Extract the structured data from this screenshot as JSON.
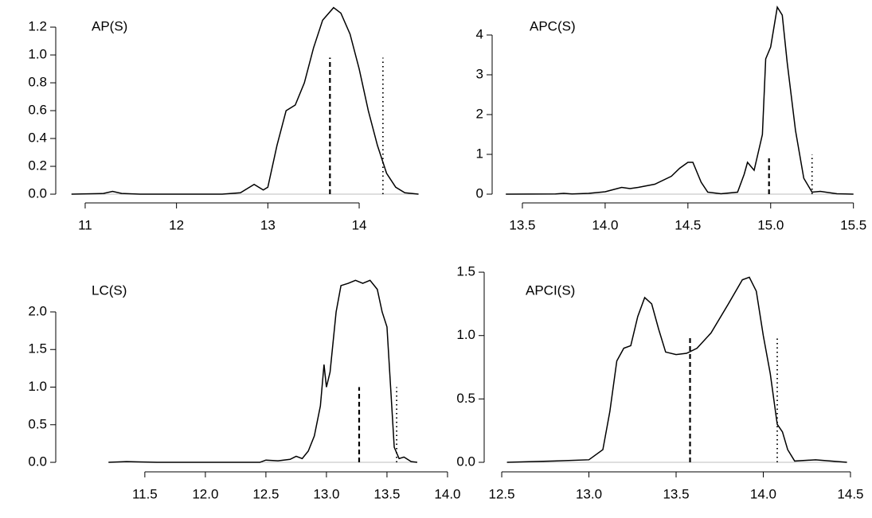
{
  "chart_data": [
    {
      "type": "line",
      "title": "AP(S)",
      "color": "#000000",
      "x": [
        10.85,
        11.2,
        11.3,
        11.4,
        11.6,
        12.5,
        12.7,
        12.85,
        12.95,
        13.0,
        13.1,
        13.2,
        13.3,
        13.4,
        13.5,
        13.6,
        13.72,
        13.8,
        13.9,
        14.0,
        14.1,
        14.2,
        14.3,
        14.4,
        14.5,
        14.65
      ],
      "values": [
        0,
        0.005,
        0.02,
        0.005,
        0,
        0,
        0.01,
        0.07,
        0.03,
        0.05,
        0.35,
        0.6,
        0.64,
        0.8,
        1.05,
        1.25,
        1.34,
        1.3,
        1.15,
        0.9,
        0.6,
        0.35,
        0.15,
        0.05,
        0.01,
        0
      ],
      "xlim": [
        10.765,
        14.645
      ],
      "ylim": [
        -0.057,
        1.349
      ],
      "xticks": [
        11,
        12,
        13,
        14
      ],
      "yticks": [
        {
          "value": 0,
          "label": "0.0"
        },
        0.2,
        0.4,
        0.6,
        0.8,
        {
          "value": 1,
          "label": "1.0"
        },
        1.2
      ],
      "vlines": [
        {
          "x": 13.68,
          "y": 0.98,
          "style": "dashed"
        },
        {
          "x": 14.26,
          "y": 0.98,
          "style": "dotted"
        }
      ]
    },
    {
      "type": "line",
      "title": "APC(S)",
      "color": "#000000",
      "x": [
        13.4,
        13.7,
        13.75,
        13.8,
        13.9,
        14.0,
        14.1,
        14.15,
        14.2,
        14.3,
        14.4,
        14.45,
        14.5,
        14.53,
        14.58,
        14.62,
        14.7,
        14.8,
        14.84,
        14.86,
        14.9,
        14.95,
        14.97,
        15.0,
        15.04,
        15.07,
        15.1,
        15.15,
        15.2,
        15.25,
        15.3,
        15.4,
        15.5
      ],
      "values": [
        0,
        0.005,
        0.02,
        0.005,
        0.02,
        0.06,
        0.17,
        0.14,
        0.17,
        0.25,
        0.45,
        0.65,
        0.8,
        0.8,
        0.3,
        0.05,
        0.01,
        0.05,
        0.5,
        0.8,
        0.6,
        1.5,
        3.4,
        3.7,
        4.7,
        4.5,
        3.3,
        1.6,
        0.4,
        0.05,
        0.07,
        0.01,
        0
      ],
      "xlim": [
        13.375,
        15.54
      ],
      "ylim": [
        -0.2,
        4.72
      ],
      "xticks": [
        13.5,
        {
          "value": 14,
          "label": "14.0"
        },
        14.5,
        {
          "value": 15,
          "label": "15.0"
        },
        15.5
      ],
      "yticks": [
        0,
        1,
        2,
        3,
        4
      ],
      "vlines": [
        {
          "x": 14.99,
          "y": 0.9,
          "style": "dashed"
        },
        {
          "x": 15.25,
          "y": 1.0,
          "style": "dotted"
        }
      ]
    },
    {
      "type": "line",
      "title": "LC(S)",
      "color": "#000000",
      "x": [
        11.2,
        11.35,
        11.45,
        11.6,
        12.45,
        12.5,
        12.6,
        12.7,
        12.75,
        12.8,
        12.85,
        12.9,
        12.95,
        12.98,
        13.0,
        13.03,
        13.08,
        13.12,
        13.18,
        13.24,
        13.3,
        13.36,
        13.42,
        13.46,
        13.5,
        13.53,
        13.56,
        13.6,
        13.64,
        13.7,
        13.75
      ],
      "values": [
        0,
        0.01,
        0.005,
        0,
        0,
        0.03,
        0.02,
        0.04,
        0.08,
        0.05,
        0.15,
        0.35,
        0.75,
        1.3,
        1.0,
        1.2,
        2.0,
        2.35,
        2.38,
        2.42,
        2.38,
        2.42,
        2.3,
        2.0,
        1.8,
        1.0,
        0.2,
        0.05,
        0.07,
        0.01,
        0
      ],
      "xlim": [
        10.83,
        14.02
      ],
      "ylim": [
        -0.116,
        2.55
      ],
      "xticks": [
        11.5,
        {
          "value": 12,
          "label": "12.0"
        },
        12.5,
        {
          "value": 13,
          "label": "13.0"
        },
        13.5,
        {
          "value": 14,
          "label": "14.0"
        }
      ],
      "yticks": [
        {
          "value": 0,
          "label": "0.0"
        },
        0.5,
        {
          "value": 1,
          "label": "1.0"
        },
        1.5,
        {
          "value": 2,
          "label": "2.0"
        }
      ],
      "vlines": [
        {
          "x": 13.27,
          "y": 1.0,
          "style": "dashed"
        },
        {
          "x": 13.58,
          "y": 1.0,
          "style": "dotted"
        }
      ]
    },
    {
      "type": "line",
      "title": "APCI(S)",
      "color": "#000000",
      "x": [
        12.53,
        12.8,
        13.0,
        13.08,
        13.12,
        13.16,
        13.2,
        13.24,
        13.28,
        13.32,
        13.36,
        13.4,
        13.44,
        13.5,
        13.56,
        13.62,
        13.7,
        13.8,
        13.88,
        13.92,
        13.96,
        14.0,
        14.04,
        14.08,
        14.11,
        14.14,
        14.18,
        14.3,
        14.48
      ],
      "values": [
        0,
        0.01,
        0.02,
        0.1,
        0.4,
        0.8,
        0.9,
        0.92,
        1.15,
        1.3,
        1.25,
        1.05,
        0.87,
        0.85,
        0.86,
        0.9,
        1.02,
        1.25,
        1.44,
        1.46,
        1.35,
        1.0,
        0.7,
        0.3,
        0.24,
        0.1,
        0.01,
        0.02,
        0
      ],
      "xlim": [
        12.477,
        14.555
      ],
      "ylim": [
        -0.069,
        1.513
      ],
      "xticks": [
        12.5,
        {
          "value": 13,
          "label": "13.0"
        },
        13.5,
        {
          "value": 14,
          "label": "14.0"
        },
        14.5
      ],
      "yticks": [
        {
          "value": 0,
          "label": "0.0"
        },
        0.5,
        {
          "value": 1,
          "label": "1.0"
        },
        1.5
      ],
      "vlines": [
        {
          "x": 13.58,
          "y": 1.0,
          "style": "dashed"
        },
        {
          "x": 14.08,
          "y": 1.0,
          "style": "dotted"
        }
      ]
    }
  ]
}
